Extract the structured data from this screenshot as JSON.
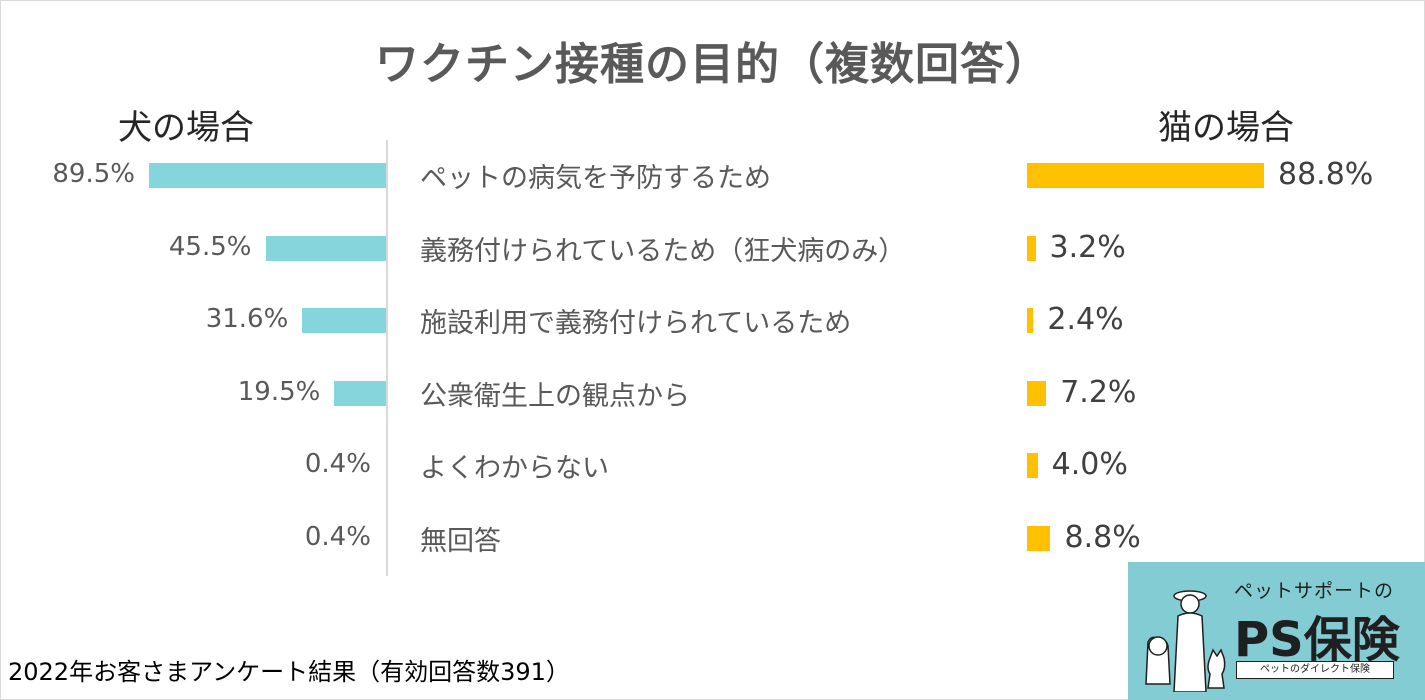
{
  "chart_data": {
    "type": "bar",
    "title": "ワクチン接種の目的（複数回答）",
    "categories": [
      "ペットの病気を予防するため",
      "義務付けられているため（狂犬病のみ）",
      "施設利用で義務付けられているため",
      "公衆衛生上の観点から",
      "よくわからない",
      "無回答"
    ],
    "series": [
      {
        "name": "犬の場合",
        "values": [
          89.5,
          45.5,
          31.6,
          19.5,
          0.4,
          0.4
        ],
        "labels": [
          "89.5%",
          "45.5%",
          "31.6%",
          "19.5%",
          "0.4%",
          "0.4%"
        ],
        "color": "#84d6dc"
      },
      {
        "name": "猫の場合",
        "values": [
          88.8,
          3.2,
          2.4,
          7.2,
          4.0,
          8.8
        ],
        "labels": [
          "88.8%",
          "3.2%",
          "2.4%",
          "7.2%",
          "4.0%",
          "8.8%"
        ],
        "color": "#ffc000"
      }
    ],
    "unit": "%",
    "xlim": [
      0,
      100
    ],
    "orientation": "horizontal-butterfly",
    "grid": false,
    "legend": "none"
  },
  "footer": "2022年お客さまアンケート結果（有効回答数391）",
  "logo": {
    "top_text": "ペットサポートの",
    "main_text": "PS保険",
    "sub_text": "ペットのダイレクト保険",
    "icon": "woman-dog-cat-icon",
    "bg_color": "#84ccd3"
  }
}
